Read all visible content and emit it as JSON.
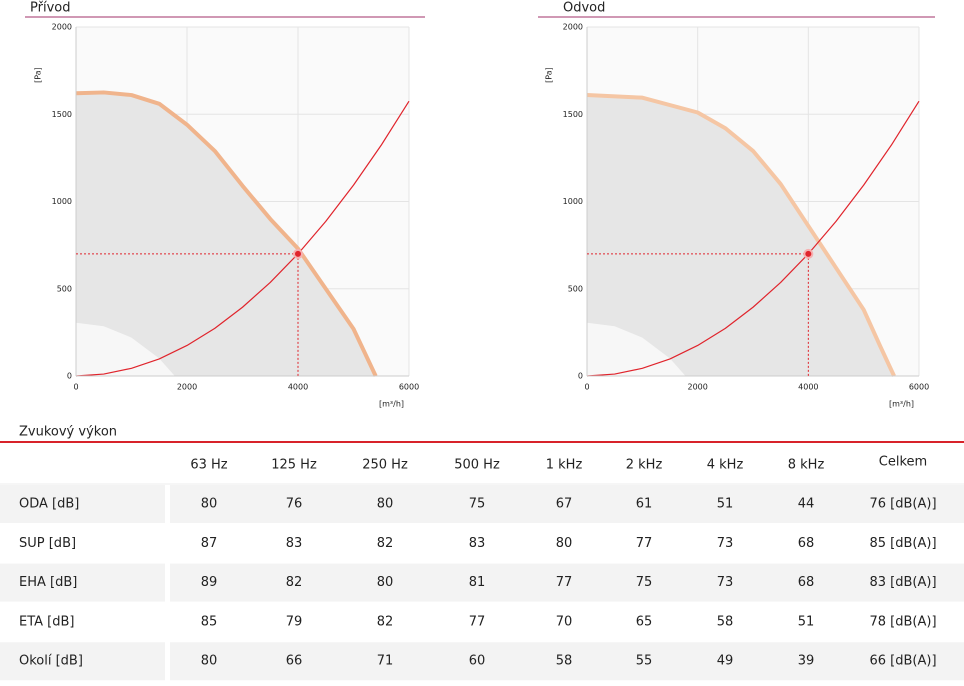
{
  "chart_data": [
    {
      "type": "line",
      "title": "Přívod",
      "xlabel": "[m³/h]",
      "ylabel": "[Pa]",
      "xlim": [
        0,
        6000
      ],
      "ylim": [
        0,
        2000
      ],
      "xticks": [
        0,
        2000,
        4000,
        6000
      ],
      "yticks": [
        0,
        500,
        1000,
        1500,
        2000
      ],
      "grid": true,
      "series": [
        {
          "color": "#f0b48c",
          "fill": "#e6e6e6",
          "x": [
            0,
            500,
            1000,
            1500,
            2000,
            2500,
            3000,
            3500,
            4000,
            4500,
            5000,
            5400
          ],
          "values": [
            1620,
            1625,
            1610,
            1560,
            1440,
            1290,
            1090,
            900,
            730,
            500,
            270,
            0
          ]
        },
        {
          "fill": "#f7f7f7",
          "x": [
            0,
            500,
            1000,
            1500,
            1780
          ],
          "values": [
            305,
            285,
            220,
            100,
            0
          ]
        },
        {
          "color": "#e0242c",
          "x": [
            0,
            500,
            1000,
            1500,
            2000,
            2500,
            3000,
            3500,
            4000,
            4500,
            5000,
            5500,
            6000
          ],
          "values": [
            0,
            11,
            44,
            98,
            175,
            273,
            394,
            536,
            700,
            886,
            1094,
            1323,
            1575
          ]
        }
      ],
      "operating_point": {
        "x": 4000,
        "y": 700,
        "color": "#e0242c"
      }
    },
    {
      "type": "line",
      "title": "Odvod",
      "xlabel": "[m³/h]",
      "ylabel": "[Pa]",
      "xlim": [
        0,
        6000
      ],
      "ylim": [
        0,
        2000
      ],
      "xticks": [
        0,
        2000,
        4000,
        6000
      ],
      "yticks": [
        0,
        500,
        1000,
        1500,
        2000
      ],
      "grid": true,
      "series": [
        {
          "color": "#f5c6a4",
          "fill": "#e6e6e6",
          "x": [
            0,
            1000,
            2000,
            2500,
            3000,
            3500,
            4000,
            4500,
            5000,
            5300,
            5550
          ],
          "values": [
            1610,
            1595,
            1510,
            1420,
            1290,
            1100,
            860,
            620,
            380,
            170,
            0
          ]
        },
        {
          "fill": "#f7f7f7",
          "x": [
            0,
            500,
            1000,
            1500,
            1780
          ],
          "values": [
            305,
            285,
            220,
            100,
            0
          ]
        },
        {
          "color": "#e0242c",
          "x": [
            0,
            500,
            1000,
            1500,
            2000,
            2500,
            3000,
            3500,
            4000,
            4500,
            5000,
            5500,
            6000
          ],
          "values": [
            0,
            11,
            44,
            98,
            175,
            273,
            394,
            536,
            700,
            886,
            1094,
            1323,
            1575
          ]
        }
      ],
      "operating_point": {
        "x": 4000,
        "y": 700,
        "color": "#e0242c"
      }
    }
  ],
  "table": {
    "title": "Zvukový výkon",
    "header": [
      "63 Hz",
      "125 Hz",
      "250 Hz",
      "500 Hz",
      "1 kHz",
      "2 kHz",
      "4 kHz",
      "8 kHz",
      "Celkem"
    ],
    "rows": [
      {
        "label": "ODA [dB]",
        "values": [
          80,
          76,
          80,
          75,
          67,
          61,
          51,
          44
        ],
        "total": "76 [dB(A)]"
      },
      {
        "label": "SUP [dB]",
        "values": [
          87,
          83,
          82,
          83,
          80,
          77,
          73,
          68
        ],
        "total": "85 [dB(A)]"
      },
      {
        "label": "EHA [dB]",
        "values": [
          89,
          82,
          80,
          81,
          77,
          75,
          73,
          68
        ],
        "total": "83 [dB(A)]"
      },
      {
        "label": "ETA [dB]",
        "values": [
          85,
          79,
          82,
          77,
          70,
          65,
          58,
          51
        ],
        "total": "78 [dB(A)]"
      },
      {
        "label": "Okolí [dB]",
        "values": [
          80,
          66,
          71,
          60,
          58,
          55,
          49,
          39
        ],
        "total": "66 [dB(A)]"
      }
    ]
  }
}
